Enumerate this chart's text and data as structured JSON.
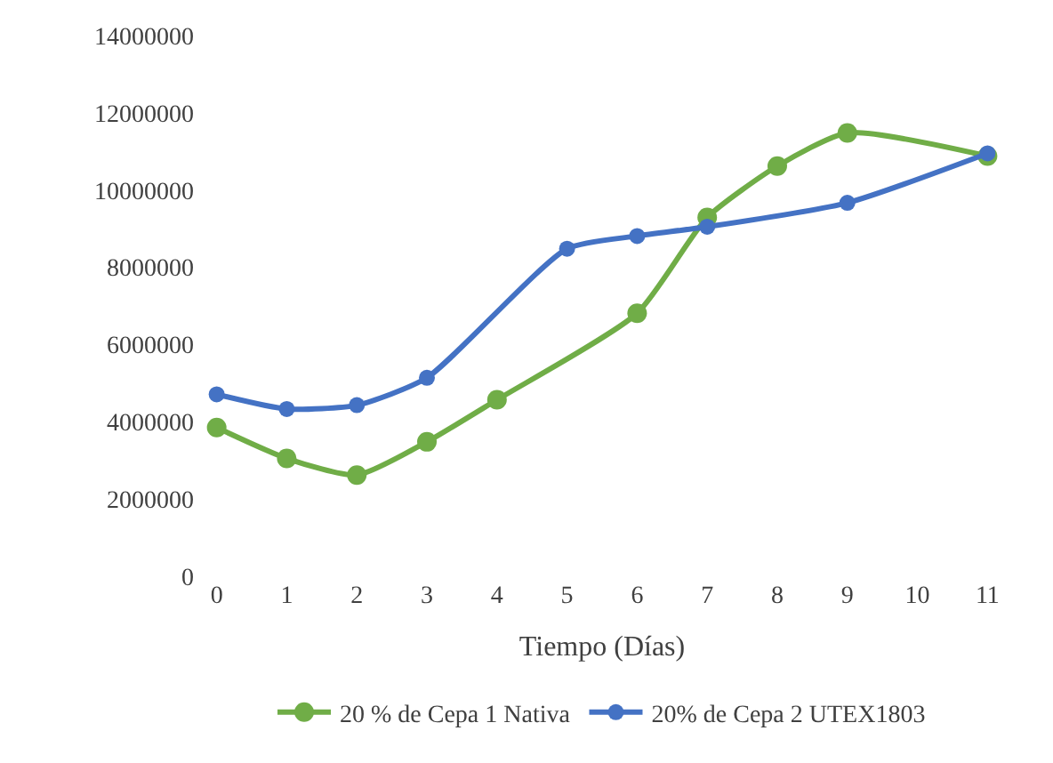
{
  "chart_data": {
    "type": "line",
    "xlabel": "Tiempo (Días)",
    "categories": [
      "0",
      "1",
      "2",
      "3",
      "4",
      "5",
      "6",
      "7",
      "8",
      "9",
      "10",
      "11"
    ],
    "series": [
      {
        "name": "20 % de Cepa 1 Nativa",
        "color": "#70ad47",
        "values": [
          3850000,
          3050000,
          2620000,
          3480000,
          4570000,
          null,
          6810000,
          9290000,
          10620000,
          11480000,
          null,
          10880000
        ]
      },
      {
        "name": "20% de Cepa 2 UTEX1803",
        "color": "#4472c4",
        "values": [
          4710000,
          4330000,
          4430000,
          5140000,
          null,
          8480000,
          8810000,
          9050000,
          null,
          9670000,
          null,
          10950000
        ]
      }
    ],
    "ylim": [
      0,
      14000000
    ],
    "yticks": [
      0,
      2000000,
      4000000,
      6000000,
      8000000,
      10000000,
      12000000,
      14000000
    ],
    "grid": false,
    "legend": "bottom",
    "marker": "circle",
    "line_style": "solid"
  }
}
